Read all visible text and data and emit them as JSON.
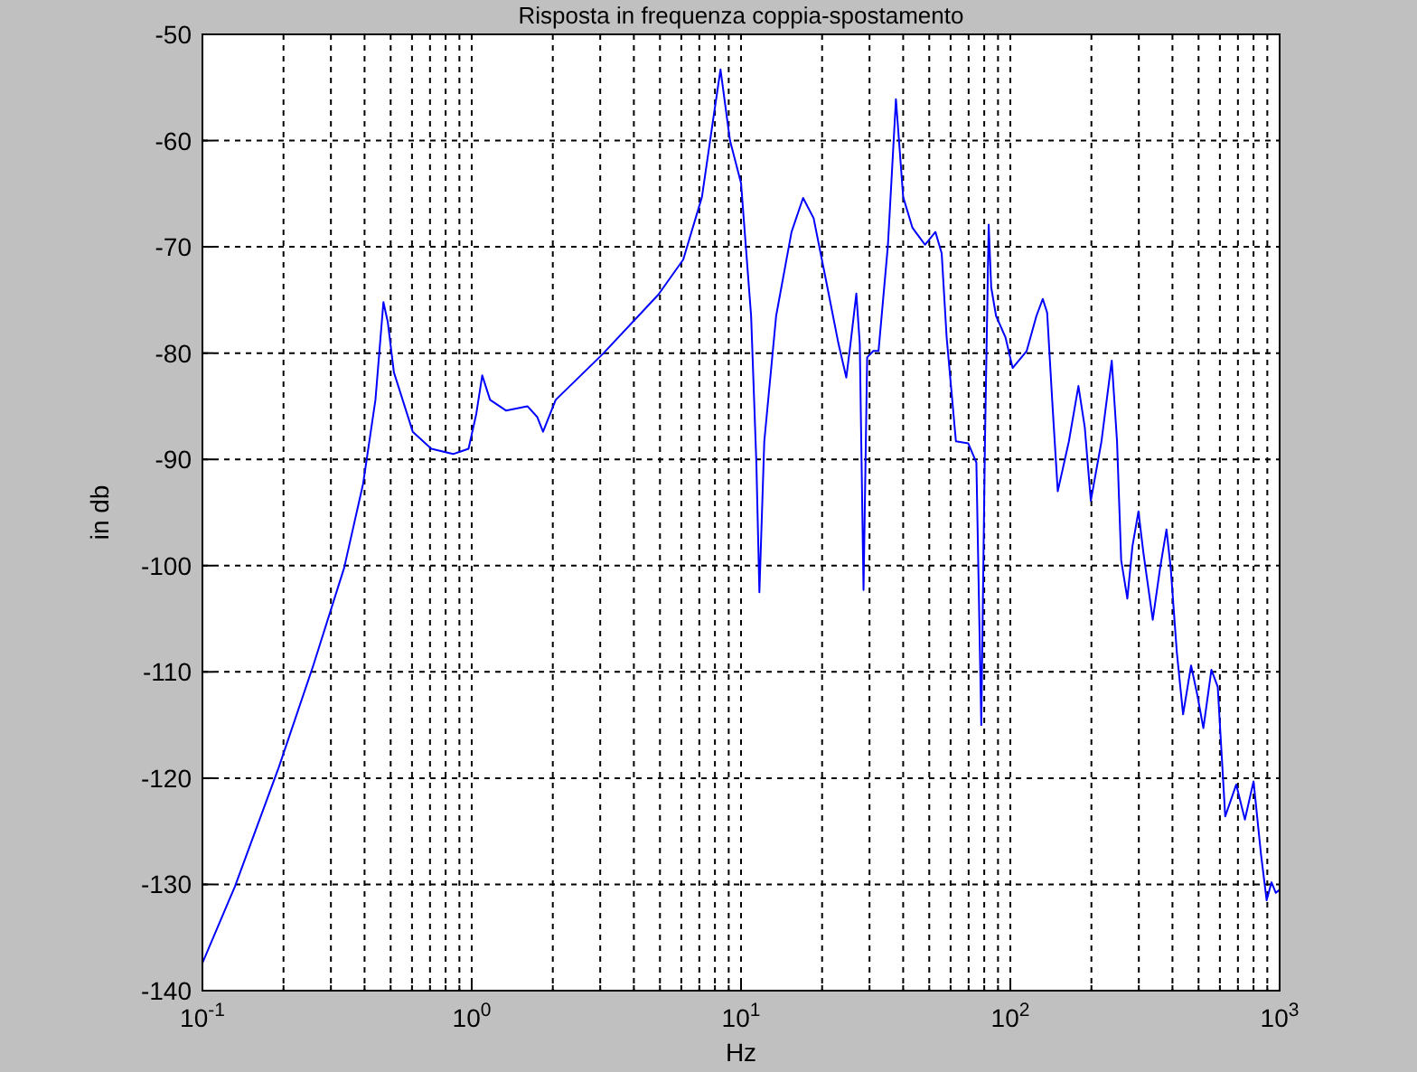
{
  "chart_data": {
    "type": "line",
    "title": "Risposta in frequenza coppia-spostamento",
    "xlabel": "Hz",
    "ylabel": "in db",
    "log": "x",
    "grid": true,
    "xlim": [
      0.1,
      1000
    ],
    "ylim": [
      -140,
      -50
    ],
    "xticks": [
      {
        "value": 0.1,
        "label": "10$^{-1}$"
      },
      {
        "value": 0.2,
        "label": null
      },
      {
        "value": 0.3,
        "label": null
      },
      {
        "value": 0.4,
        "label": null
      },
      {
        "value": 0.5,
        "label": null
      },
      {
        "value": 0.6,
        "label": null
      },
      {
        "value": 0.7,
        "label": null
      },
      {
        "value": 0.8,
        "label": null
      },
      {
        "value": 0.9,
        "label": null
      },
      {
        "value": 1,
        "label": "10$^{0}$"
      },
      {
        "value": 2,
        "label": null
      },
      {
        "value": 3,
        "label": null
      },
      {
        "value": 4,
        "label": null
      },
      {
        "value": 5,
        "label": null
      },
      {
        "value": 6,
        "label": null
      },
      {
        "value": 7,
        "label": null
      },
      {
        "value": 8,
        "label": null
      },
      {
        "value": 9,
        "label": null
      },
      {
        "value": 10,
        "label": "10$^{1}$"
      },
      {
        "value": 20,
        "label": null
      },
      {
        "value": 30,
        "label": null
      },
      {
        "value": 40,
        "label": null
      },
      {
        "value": 50,
        "label": null
      },
      {
        "value": 60,
        "label": null
      },
      {
        "value": 70,
        "label": null
      },
      {
        "value": 80,
        "label": null
      },
      {
        "value": 90,
        "label": null
      },
      {
        "value": 100,
        "label": "10$^{2}$"
      },
      {
        "value": 200,
        "label": null
      },
      {
        "value": 300,
        "label": null
      },
      {
        "value": 400,
        "label": null
      },
      {
        "value": 500,
        "label": null
      },
      {
        "value": 600,
        "label": null
      },
      {
        "value": 700,
        "label": null
      },
      {
        "value": 800,
        "label": null
      },
      {
        "value": 900,
        "label": null
      },
      {
        "value": 1000,
        "label": "10$^{3}$"
      }
    ],
    "yticks": [
      -140,
      -130,
      -120,
      -110,
      -100,
      -90,
      -80,
      -70,
      -60,
      -50
    ],
    "x": [
      0.1,
      0.132,
      0.192,
      0.258,
      0.336,
      0.395,
      0.439,
      0.47,
      0.488,
      0.514,
      0.604,
      0.708,
      0.853,
      0.973,
      1.04,
      1.094,
      1.17,
      1.34,
      1.61,
      1.75,
      1.84,
      2.05,
      3.06,
      4.93,
      6.1,
      7.16,
      7.88,
      8.39,
      9.1,
      10,
      10.9,
      11.4,
      11.7,
      12.2,
      13.5,
      15.4,
      17,
      18.6,
      20.7,
      23,
      24.6,
      25.5,
      26.8,
      27.6,
      28.5,
      29.4,
      31,
      32.4,
      35.1,
      37.6,
      40,
      43.3,
      48.2,
      52.7,
      55.6,
      58,
      62.8,
      69.8,
      74.8,
      78,
      80.5,
      83.1,
      84.9,
      88.5,
      95.9,
      102,
      115,
      125,
      132,
      137,
      143,
      150,
      165,
      179,
      189,
      199,
      218,
      238,
      249,
      258,
      272,
      284,
      299,
      312,
      338,
      360,
      380,
      394,
      415,
      438,
      469,
      494,
      521,
      558,
      589,
      628,
      690,
      743,
      800,
      853,
      895,
      933,
      968,
      1000
    ],
    "series": [
      {
        "color": "#0000ff",
        "values": [
          -137.4,
          -130.2,
          -119,
          -109.4,
          -100.2,
          -92.3,
          -84.4,
          -75.2,
          -77.1,
          -81.8,
          -87.4,
          -89,
          -89.5,
          -89,
          -85.7,
          -82.1,
          -84.4,
          -85.4,
          -85,
          -86,
          -87.4,
          -84.4,
          -80.1,
          -74.5,
          -71.2,
          -65.3,
          -58,
          -53.3,
          -60,
          -64,
          -76.5,
          -90.3,
          -102.5,
          -88.3,
          -76.5,
          -68.6,
          -65.4,
          -67.3,
          -73.2,
          -79.1,
          -82.3,
          -79.1,
          -74.4,
          -79.1,
          -102.3,
          -80.4,
          -79.8,
          -79.8,
          -69.9,
          -56.1,
          -65.3,
          -68.2,
          -69.8,
          -68.6,
          -70.6,
          -78.5,
          -88.3,
          -88.5,
          -90.3,
          -115,
          -88.3,
          -67.9,
          -73.8,
          -76.5,
          -78.5,
          -81.4,
          -79.8,
          -76.5,
          -74.9,
          -76.2,
          -84.4,
          -93,
          -88.3,
          -83.1,
          -87,
          -93.9,
          -88.3,
          -80.7,
          -88.3,
          -99.5,
          -103.1,
          -98.2,
          -94.9,
          -98.8,
          -105.1,
          -100.2,
          -96.6,
          -100.2,
          -108.1,
          -114,
          -109.4,
          -112.1,
          -115.3,
          -109.8,
          -111.4,
          -123.6,
          -120.6,
          -123.9,
          -120.3,
          -127.2,
          -131.5,
          -129.8,
          -130.8,
          -130.5
        ]
      }
    ]
  }
}
